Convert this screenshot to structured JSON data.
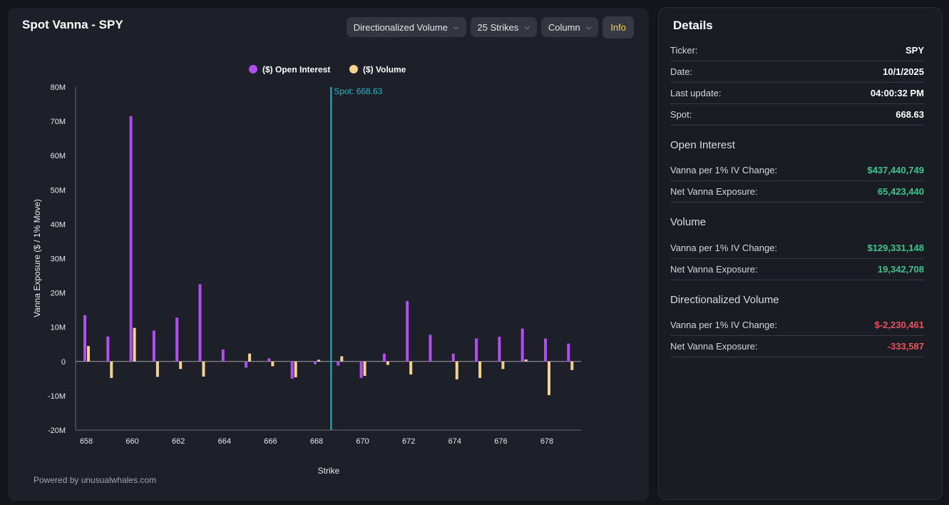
{
  "header": {
    "title": "Spot Vanna - SPY",
    "controls": [
      "Directionalized Volume",
      "25 Strikes",
      "Column"
    ],
    "info_label": "Info"
  },
  "footer": "Powered by unusualwhales.com",
  "chart_data": {
    "type": "bar",
    "title": "Spot Vanna - SPY",
    "xlabel": "Strike",
    "ylabel": "Vanna Exposure ($ / 1% Move)",
    "ylim": [
      -20,
      80
    ],
    "y_unit": "M",
    "y_ticks": [
      "80M",
      "70M",
      "60M",
      "50M",
      "40M",
      "30M",
      "20M",
      "10M",
      "0",
      "-10M",
      "-20M"
    ],
    "x_ticks": [
      "658",
      "660",
      "662",
      "664",
      "666",
      "668",
      "670",
      "672",
      "674",
      "676",
      "678"
    ],
    "categories": [
      658,
      659,
      660,
      661,
      662,
      663,
      664,
      665,
      666,
      667,
      668,
      669,
      670,
      671,
      672,
      673,
      674,
      675,
      676,
      677,
      678,
      679
    ],
    "series": [
      {
        "name": "($) Open Interest",
        "color": "#b14ef0",
        "values": [
          13.5,
          7.3,
          71.5,
          9.0,
          12.8,
          22.5,
          3.5,
          -1.8,
          0.9,
          -5.0,
          -0.8,
          -1.2,
          -4.8,
          2.3,
          17.6,
          7.8,
          2.3,
          6.7,
          7.2,
          9.6,
          6.7,
          5.2
        ]
      },
      {
        "name": "($) Volume",
        "color": "#f3d28f",
        "values": [
          4.5,
          -4.8,
          9.8,
          -4.5,
          -2.2,
          -4.4,
          0,
          2.3,
          -1.4,
          -4.6,
          0.5,
          1.5,
          -4.2,
          -1.0,
          -3.8,
          0,
          -5.2,
          -4.8,
          -2.2,
          0.6,
          -9.8,
          -2.5
        ]
      }
    ],
    "spot": {
      "value": 668.63,
      "label": "Spot: 668.63",
      "color": "#1fb8c9"
    }
  },
  "details": {
    "title": "Details",
    "info": [
      {
        "label": "Ticker:",
        "value": "SPY"
      },
      {
        "label": "Date:",
        "value": "10/1/2025"
      },
      {
        "label": "Last update:",
        "value": "04:00:32 PM"
      },
      {
        "label": "Spot:",
        "value": "668.63"
      }
    ],
    "open_interest": {
      "title": "Open Interest",
      "rows": [
        {
          "label": "Vanna per 1% IV Change:",
          "value": "$437,440,749"
        },
        {
          "label": "Net Vanna Exposure:",
          "value": "65,423,440"
        }
      ]
    },
    "volume": {
      "title": "Volume",
      "rows": [
        {
          "label": "Vanna per 1% IV Change:",
          "value": "$129,331,148"
        },
        {
          "label": "Net Vanna Exposure:",
          "value": "19,342,708"
        }
      ]
    },
    "directionalized_volume": {
      "title": "Directionalized Volume",
      "rows": [
        {
          "label": "Vanna per 1% IV Change:",
          "value": "$-2,230,461"
        },
        {
          "label": "Net Vanna Exposure:",
          "value": "-333,587"
        }
      ]
    }
  }
}
